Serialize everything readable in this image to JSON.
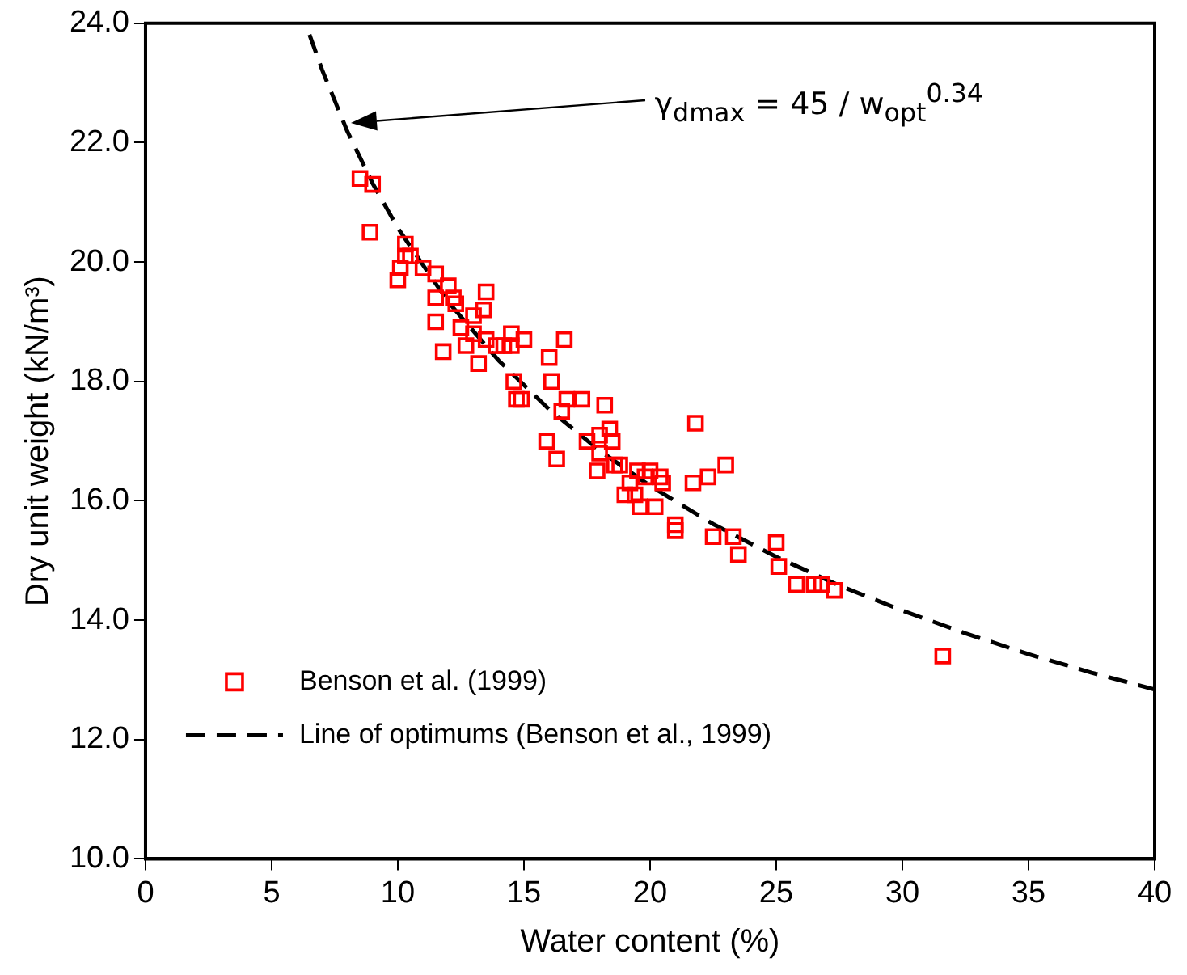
{
  "chart_data": {
    "type": "scatter",
    "xlabel": "Water content (%)",
    "ylabel": "Dry unit weight (kN/m³)",
    "xlim": [
      0,
      40
    ],
    "xticks": [
      0,
      5,
      10,
      15,
      20,
      25,
      30,
      35,
      40
    ],
    "ylim": [
      10,
      24
    ],
    "yticks": [
      {
        "value": 10,
        "label": "10.0"
      },
      {
        "value": 12,
        "label": "12.0"
      },
      {
        "value": 14,
        "label": "14.0"
      },
      {
        "value": 16,
        "label": "16.0"
      },
      {
        "value": 18,
        "label": "18.0"
      },
      {
        "value": 20,
        "label": "20.0"
      },
      {
        "value": 22,
        "label": "22.0"
      },
      {
        "value": 24,
        "label": "24.0"
      }
    ],
    "grid": false,
    "legend": "bottom left",
    "series": [
      {
        "name": "Benson et al. (1999)",
        "type": "scatter",
        "marker": "square",
        "color": "#ff0000",
        "x": [
          8.5,
          9.0,
          8.9,
          10.0,
          10.1,
          10.3,
          10.5,
          10.3,
          11.0,
          11.5,
          11.5,
          11.5,
          11.8,
          12.0,
          12.2,
          12.3,
          12.5,
          12.7,
          13.0,
          13.0,
          13.2,
          13.4,
          13.5,
          13.5,
          13.9,
          14.2,
          14.5,
          14.6,
          14.7,
          14.9,
          15.0,
          14.5,
          15.9,
          16.0,
          16.1,
          16.3,
          16.5,
          16.6,
          16.7,
          17.3,
          17.5,
          17.9,
          18.0,
          18.0,
          18.2,
          18.4,
          18.5,
          18.6,
          18.8,
          19.0,
          19.2,
          19.4,
          19.5,
          19.6,
          19.8,
          20.0,
          20.2,
          20.4,
          20.5,
          21.0,
          21.0,
          21.7,
          21.8,
          22.3,
          22.5,
          23.0,
          23.3,
          23.5,
          25.0,
          25.1,
          25.8,
          26.5,
          26.8,
          27.3,
          31.6
        ],
        "values": [
          21.4,
          21.3,
          20.5,
          19.7,
          19.9,
          20.1,
          20.1,
          20.3,
          19.9,
          19.8,
          19.4,
          19.0,
          18.5,
          19.6,
          19.4,
          19.3,
          18.9,
          18.6,
          18.8,
          19.1,
          18.3,
          19.2,
          19.5,
          18.7,
          18.6,
          18.6,
          18.8,
          18.0,
          17.7,
          17.7,
          18.7,
          18.6,
          17.0,
          18.4,
          18.0,
          16.7,
          17.5,
          18.7,
          17.7,
          17.7,
          17.0,
          16.5,
          16.8,
          17.1,
          17.6,
          17.2,
          17.0,
          16.6,
          16.6,
          16.1,
          16.3,
          16.1,
          16.5,
          15.9,
          16.4,
          16.5,
          15.9,
          16.4,
          16.3,
          15.6,
          15.5,
          16.3,
          17.3,
          16.4,
          15.4,
          16.6,
          15.4,
          15.1,
          15.3,
          14.9,
          14.6,
          14.6,
          14.6,
          14.5,
          13.4
        ]
      },
      {
        "name": "Line of optimums (Benson et al., 1999)",
        "type": "line",
        "marker": "none",
        "line_style": "dashed",
        "color": "#000000",
        "x": [
          6.5,
          7,
          8,
          9,
          10,
          12,
          14,
          16,
          18,
          20,
          22.5,
          25,
          27.5,
          30,
          32.5,
          35,
          37.5,
          40
        ],
        "values": [
          23.81,
          23.22,
          22.19,
          21.32,
          20.57,
          19.33,
          18.35,
          17.53,
          16.84,
          16.25,
          15.61,
          15.06,
          14.58,
          14.16,
          13.78,
          13.43,
          13.12,
          12.84
        ]
      }
    ],
    "annotations": [
      "γ$_{dmax}$ = 45 / w$_{opt}$$^{0.34}$"
    ]
  }
}
